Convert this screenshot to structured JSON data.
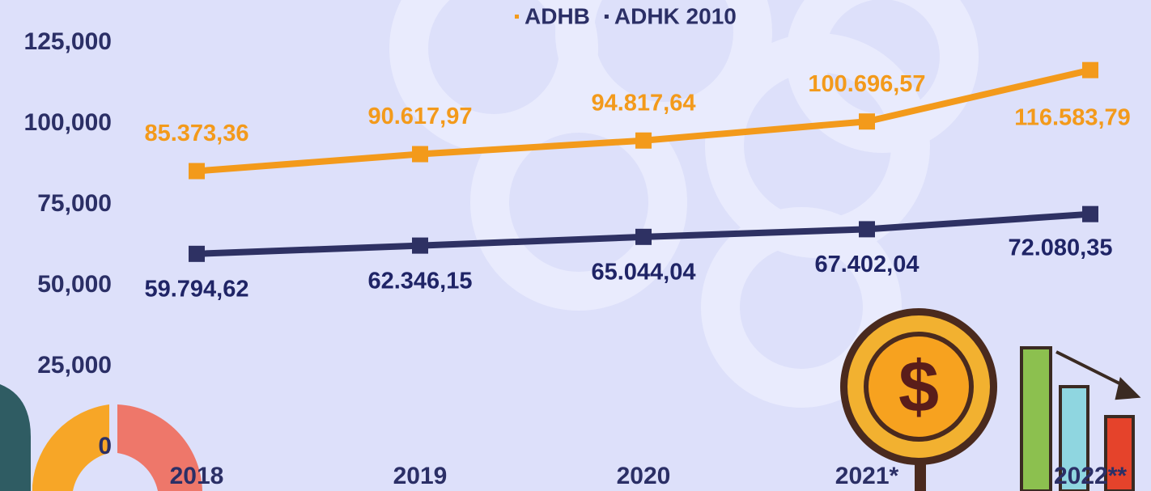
{
  "chart_data": {
    "type": "line",
    "categories": [
      "2018",
      "2019",
      "2020",
      "2021*",
      "2022**"
    ],
    "series": [
      {
        "name": "ADHB",
        "color": "#f39a1b",
        "values": [
          85373.36,
          90617.97,
          94817.64,
          100696.57,
          116583.79
        ],
        "value_labels": [
          "85.373,36",
          "90.617,97",
          "94.817,64",
          "100.696,57",
          "116.583,79"
        ]
      },
      {
        "name": "ADHK 2010",
        "color": "#2e3163",
        "values": [
          59794.62,
          62346.15,
          65044.04,
          67402.04,
          72080.35
        ],
        "value_labels": [
          "59.794,62",
          "62.346,15",
          "65.044,04",
          "67.402,04",
          "72.080,35"
        ]
      }
    ],
    "ylim": [
      0,
      125000
    ],
    "yticks": [
      0,
      {
        "value": 25000,
        "label": "25,000"
      },
      {
        "value": 50000,
        "label": "50,000"
      },
      {
        "value": 75000,
        "label": "75,000"
      },
      {
        "value": 100000,
        "label": "100,000"
      },
      {
        "value": 125000,
        "label": "125,000"
      }
    ],
    "grid": false
  }
}
